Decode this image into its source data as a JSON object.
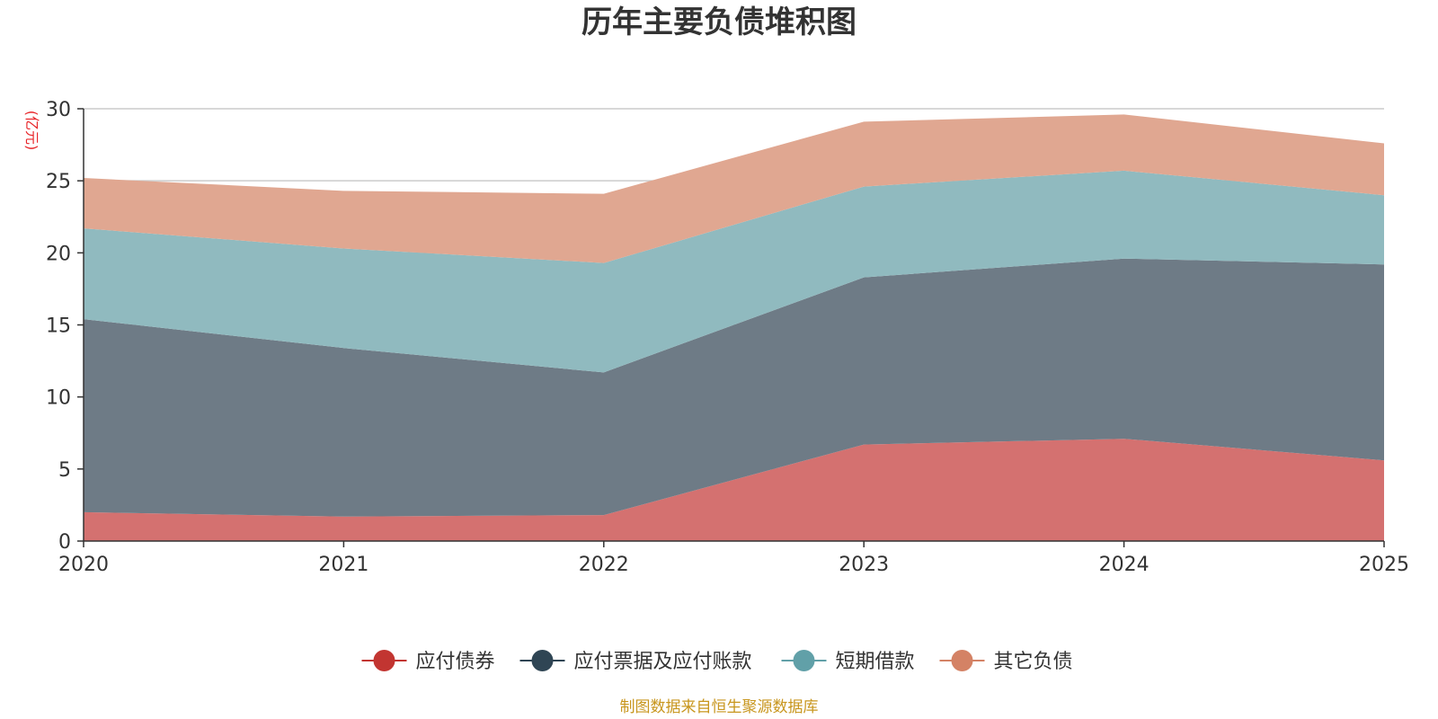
{
  "chart_data": {
    "type": "area",
    "stacked": true,
    "title": "历年主要负债堆积图",
    "unit": "(亿元)",
    "x": [
      "2020",
      "2021",
      "2022",
      "2023",
      "2024",
      "2025"
    ],
    "ylim": [
      0,
      30
    ],
    "yticks": [
      0,
      5,
      10,
      15,
      20,
      25,
      30
    ],
    "grid": true,
    "legend_position": "bottom",
    "series": [
      {
        "name": "应付债券",
        "color": "#c23531",
        "area_color": "#d47170",
        "values": [
          2.0,
          1.7,
          1.8,
          6.7,
          7.1,
          5.6
        ]
      },
      {
        "name": "应付票据及应付账款",
        "color": "#2f4554",
        "area_color": "#6e7b86",
        "values": [
          13.4,
          11.7,
          9.9,
          11.6,
          12.5,
          13.6
        ]
      },
      {
        "name": "短期借款",
        "color": "#61a0a8",
        "area_color": "#90babf",
        "values": [
          6.3,
          6.9,
          7.6,
          6.3,
          6.1,
          4.8
        ]
      },
      {
        "name": "其它负债",
        "color": "#d48265",
        "area_color": "#e0a791",
        "values": [
          3.5,
          4.0,
          4.8,
          4.5,
          3.9,
          3.6
        ]
      }
    ],
    "source": "制图数据来自恒生聚源数据库"
  }
}
